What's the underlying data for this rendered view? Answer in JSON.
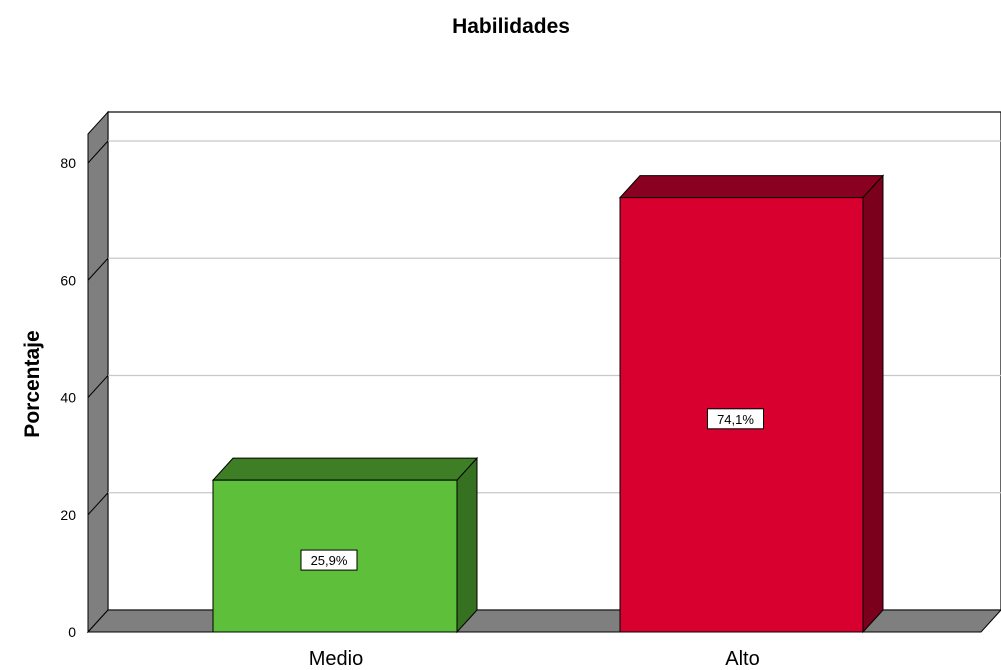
{
  "chart_data": {
    "type": "bar",
    "title": "Habilidades",
    "xlabel": "",
    "ylabel": "Porcentaje",
    "categories": [
      "Medio",
      "Alto"
    ],
    "values": [
      25.9,
      74.1
    ],
    "data_labels": [
      "25,9%",
      "74,1%"
    ],
    "yticks": [
      0,
      20,
      40,
      60,
      80
    ],
    "ylim": [
      0,
      85
    ],
    "grid": true,
    "style": "3d",
    "colors": {
      "Medio": {
        "front": "#5dbf3a",
        "top": "#3e7e25",
        "side": "#367021"
      },
      "Alto": {
        "front": "#d7002f",
        "top": "#8a0020",
        "side": "#7a001c"
      }
    }
  }
}
